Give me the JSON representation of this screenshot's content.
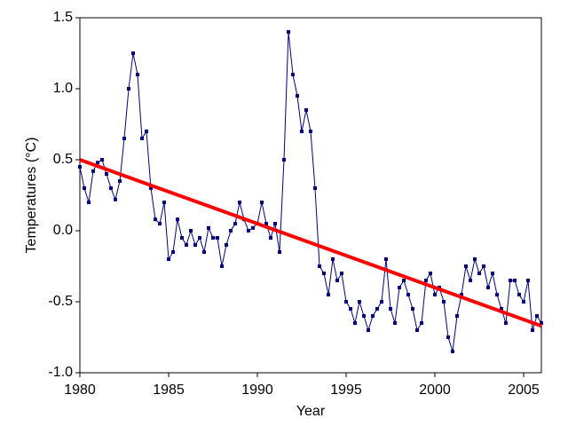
{
  "chart_data": {
    "type": "line",
    "xlabel": "Year",
    "ylabel": "Temperatures (°C)",
    "xlim": [
      1980,
      2006
    ],
    "ylim": [
      -1.0,
      1.5
    ],
    "xticks": [
      1980,
      1985,
      1990,
      1995,
      2000,
      2005
    ],
    "yticks": [
      {
        "value": -1.0,
        "label": "-1.0"
      },
      -0.5,
      {
        "value": 0.0,
        "label": "0.0"
      },
      0.5,
      {
        "value": 1.0,
        "label": "1.0"
      },
      1.5
    ],
    "series": [
      {
        "color": "#000080",
        "markers": true,
        "x": [
          1980,
          1980.25,
          1980.5,
          1980.75,
          1981,
          1981.25,
          1981.5,
          1981.75,
          1982,
          1982.25,
          1982.5,
          1982.75,
          1983,
          1983.25,
          1983.5,
          1983.75,
          1984,
          1984.25,
          1984.5,
          1984.75,
          1985,
          1985.25,
          1985.5,
          1985.75,
          1986,
          1986.25,
          1986.5,
          1986.75,
          1987,
          1987.25,
          1987.5,
          1987.75,
          1988,
          1988.25,
          1988.5,
          1988.75,
          1989,
          1989.25,
          1989.5,
          1989.75,
          1990,
          1990.25,
          1990.5,
          1990.75,
          1991,
          1991.25,
          1991.5,
          1991.75,
          1992,
          1992.25,
          1992.5,
          1992.75,
          1993,
          1993.25,
          1993.5,
          1993.75,
          1994,
          1994.25,
          1994.5,
          1994.75,
          1995,
          1995.25,
          1995.5,
          1995.75,
          1996,
          1996.25,
          1996.5,
          1996.75,
          1997,
          1997.25,
          1997.5,
          1997.75,
          1998,
          1998.25,
          1998.5,
          1998.75,
          1999,
          1999.25,
          1999.5,
          1999.75,
          2000,
          2000.25,
          2000.5,
          2000.75,
          2001,
          2001.25,
          2001.5,
          2001.75,
          2002,
          2002.25,
          2002.5,
          2002.75,
          2003,
          2003.25,
          2003.5,
          2003.75,
          2004,
          2004.25,
          2004.5,
          2004.75,
          2005,
          2005.25,
          2005.5,
          2005.75,
          2006
        ],
        "values": [
          0.45,
          0.3,
          0.2,
          0.42,
          0.48,
          0.5,
          0.4,
          0.3,
          0.22,
          0.35,
          0.65,
          1.0,
          1.25,
          1.1,
          0.65,
          0.7,
          0.3,
          0.08,
          0.05,
          0.2,
          -0.2,
          -0.15,
          0.08,
          -0.05,
          -0.1,
          0.0,
          -0.1,
          -0.05,
          -0.15,
          0.02,
          -0.05,
          -0.05,
          -0.25,
          -0.1,
          0.0,
          0.05,
          0.2,
          0.08,
          0.0,
          0.02,
          0.05,
          0.2,
          0.05,
          -0.05,
          0.05,
          -0.15,
          0.5,
          1.4,
          1.1,
          0.95,
          0.7,
          0.85,
          0.7,
          0.3,
          -0.25,
          -0.3,
          -0.45,
          -0.2,
          -0.35,
          -0.3,
          -0.5,
          -0.55,
          -0.65,
          -0.5,
          -0.6,
          -0.7,
          -0.6,
          -0.55,
          -0.5,
          -0.2,
          -0.55,
          -0.65,
          -0.4,
          -0.35,
          -0.45,
          -0.55,
          -0.7,
          -0.65,
          -0.35,
          -0.3,
          -0.45,
          -0.4,
          -0.5,
          -0.75,
          -0.85,
          -0.6,
          -0.45,
          -0.25,
          -0.35,
          -0.2,
          -0.3,
          -0.25,
          -0.4,
          -0.3,
          -0.45,
          -0.55,
          -0.65,
          -0.35,
          -0.35,
          -0.45,
          -0.5,
          -0.35,
          -0.7,
          -0.6,
          -0.65
        ]
      },
      {
        "color": "#ff0000",
        "markers": false,
        "x": [
          1980,
          2006
        ],
        "values": [
          0.5,
          -0.67
        ]
      }
    ]
  }
}
